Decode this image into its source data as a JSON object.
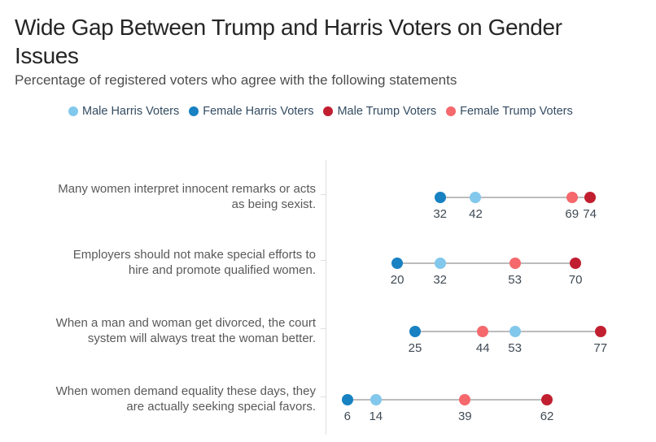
{
  "title": {
    "full": "Wide Gap Between Trump and Harris Voters on Gender Issues",
    "lines": [
      "Wide Gap Between Trump and Harris Voters on Gender",
      "Issues"
    ]
  },
  "subtitle": "Percentage of registered voters who agree with the following statements",
  "legend": {
    "items": [
      {
        "key": "male_harris",
        "label": "Male Harris Voters",
        "color": "#82c8ec"
      },
      {
        "key": "female_harris",
        "label": "Female Harris Voters",
        "color": "#1781c2"
      },
      {
        "key": "male_trump",
        "label": "Male Trump Voters",
        "color": "#c11f30"
      },
      {
        "key": "female_trump",
        "label": "Female Trump Voters",
        "color": "#f5686c"
      }
    ]
  },
  "colors": {
    "connector": "#bcbcbc",
    "axis": "#dedede",
    "value_label": "#3f4a54",
    "statement": "#595959",
    "legend_text": "#334b62",
    "title": "#262626",
    "subtitle": "#4d4d4d"
  },
  "chart_data": {
    "type": "scatter",
    "variant": "dumbbell-dot-plot",
    "title": "Wide Gap Between Trump and Harris Voters on Gender Issues",
    "subtitle": "Percentage of registered voters who agree with the following statements",
    "unit": "percent of registered voters agreeing",
    "x_axis": {
      "min": 0,
      "max": 80,
      "ticks_shown": false,
      "gridlines": false
    },
    "legend_position": "top",
    "series_names": [
      "Male Harris Voters",
      "Female Harris Voters",
      "Male Trump Voters",
      "Female Trump Voters"
    ],
    "rows": [
      {
        "statement": "Many women interpret innocent remarks or acts as being sexist.",
        "label_lines": [
          "Many women interpret innocent remarks or acts",
          "as being sexist."
        ],
        "points": [
          {
            "series": "female_harris",
            "value": 32
          },
          {
            "series": "male_harris",
            "value": 42
          },
          {
            "series": "female_trump",
            "value": 69
          },
          {
            "series": "male_trump",
            "value": 74
          }
        ]
      },
      {
        "statement": "Employers should not make special efforts to hire and promote qualified women.",
        "label_lines": [
          "Employers should not make special efforts to",
          "hire and promote qualified women."
        ],
        "points": [
          {
            "series": "female_harris",
            "value": 20
          },
          {
            "series": "male_harris",
            "value": 32
          },
          {
            "series": "female_trump",
            "value": 53
          },
          {
            "series": "male_trump",
            "value": 70
          }
        ]
      },
      {
        "statement": "When a man and woman get divorced, the court system will always treat the woman better.",
        "label_lines": [
          "When a man and woman get divorced, the court",
          "system will always treat the woman better."
        ],
        "points": [
          {
            "series": "female_harris",
            "value": 25
          },
          {
            "series": "female_trump",
            "value": 44
          },
          {
            "series": "male_harris",
            "value": 53
          },
          {
            "series": "male_trump",
            "value": 77
          }
        ]
      },
      {
        "statement": "When women demand equality these days, they are actually seeking special favors.",
        "label_lines": [
          "When women demand equality these days, they",
          "are actually seeking special favors."
        ],
        "points": [
          {
            "series": "female_harris",
            "value": 6
          },
          {
            "series": "male_harris",
            "value": 14
          },
          {
            "series": "female_trump",
            "value": 39
          },
          {
            "series": "male_trump",
            "value": 62
          }
        ]
      }
    ]
  }
}
